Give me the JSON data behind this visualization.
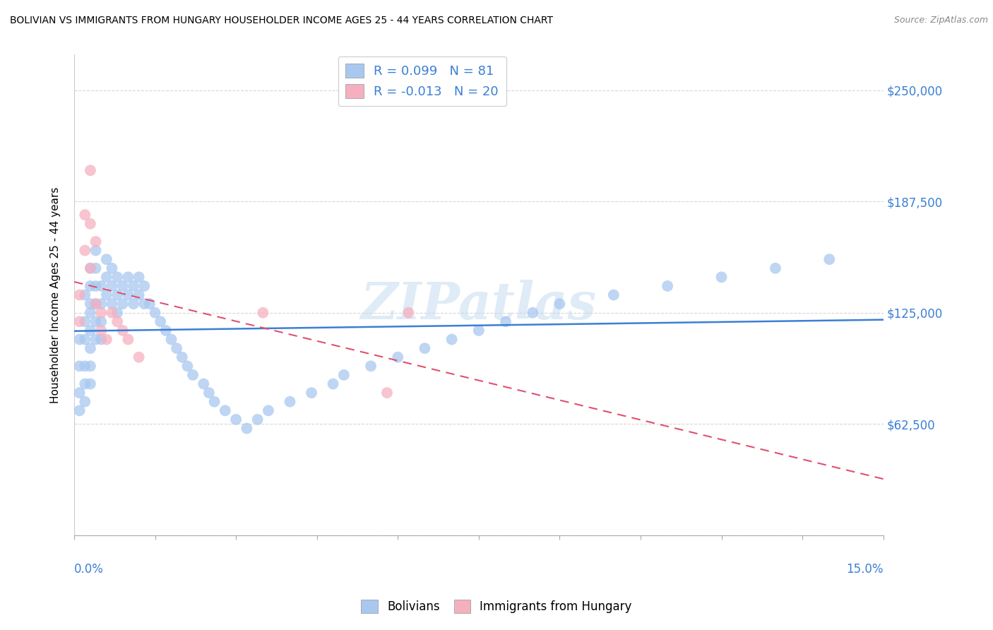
{
  "title": "BOLIVIAN VS IMMIGRANTS FROM HUNGARY HOUSEHOLDER INCOME AGES 25 - 44 YEARS CORRELATION CHART",
  "source": "Source: ZipAtlas.com",
  "ylabel": "Householder Income Ages 25 - 44 years",
  "ytick_vals": [
    0,
    62500,
    125000,
    187500,
    250000
  ],
  "ytick_labels": [
    "",
    "$62,500",
    "$125,000",
    "$187,500",
    "$250,000"
  ],
  "xmin": 0.0,
  "xmax": 0.15,
  "ymin": 0,
  "ymax": 270000,
  "bol_R": 0.099,
  "bol_N": 81,
  "hun_R": -0.013,
  "hun_N": 20,
  "bolivians_color": "#a8c8f0",
  "hungary_color": "#f5b0c0",
  "trendline_bol_color": "#3a7fd5",
  "trendline_hun_color": "#e05070",
  "watermark": "ZIPatlas",
  "background_color": "#ffffff",
  "bol_x": [
    0.001,
    0.001,
    0.001,
    0.001,
    0.002,
    0.002,
    0.002,
    0.002,
    0.002,
    0.002,
    0.003,
    0.003,
    0.003,
    0.003,
    0.003,
    0.003,
    0.003,
    0.003,
    0.004,
    0.004,
    0.004,
    0.004,
    0.004,
    0.004,
    0.005,
    0.005,
    0.005,
    0.005,
    0.006,
    0.006,
    0.006,
    0.007,
    0.007,
    0.007,
    0.008,
    0.008,
    0.008,
    0.009,
    0.009,
    0.01,
    0.01,
    0.011,
    0.011,
    0.012,
    0.012,
    0.013,
    0.013,
    0.014,
    0.015,
    0.016,
    0.017,
    0.018,
    0.019,
    0.02,
    0.021,
    0.022,
    0.024,
    0.025,
    0.026,
    0.028,
    0.03,
    0.032,
    0.034,
    0.036,
    0.04,
    0.044,
    0.048,
    0.05,
    0.055,
    0.06,
    0.065,
    0.07,
    0.075,
    0.08,
    0.085,
    0.09,
    0.1,
    0.11,
    0.12,
    0.13,
    0.14
  ],
  "bol_y": [
    110000,
    95000,
    80000,
    70000,
    135000,
    120000,
    110000,
    95000,
    85000,
    75000,
    150000,
    140000,
    130000,
    125000,
    115000,
    105000,
    95000,
    85000,
    160000,
    150000,
    140000,
    130000,
    120000,
    110000,
    140000,
    130000,
    120000,
    110000,
    155000,
    145000,
    135000,
    150000,
    140000,
    130000,
    145000,
    135000,
    125000,
    140000,
    130000,
    145000,
    135000,
    140000,
    130000,
    145000,
    135000,
    140000,
    130000,
    130000,
    125000,
    120000,
    115000,
    110000,
    105000,
    100000,
    95000,
    90000,
    85000,
    80000,
    75000,
    70000,
    65000,
    60000,
    65000,
    70000,
    75000,
    80000,
    85000,
    90000,
    95000,
    100000,
    105000,
    110000,
    115000,
    120000,
    125000,
    130000,
    135000,
    140000,
    145000,
    150000,
    155000
  ],
  "hun_x": [
    0.001,
    0.001,
    0.002,
    0.002,
    0.003,
    0.003,
    0.003,
    0.004,
    0.004,
    0.005,
    0.005,
    0.006,
    0.007,
    0.008,
    0.009,
    0.01,
    0.012,
    0.035,
    0.058,
    0.062
  ],
  "hun_y": [
    135000,
    120000,
    180000,
    160000,
    205000,
    175000,
    150000,
    165000,
    130000,
    125000,
    115000,
    110000,
    125000,
    120000,
    115000,
    110000,
    100000,
    125000,
    80000,
    125000
  ]
}
